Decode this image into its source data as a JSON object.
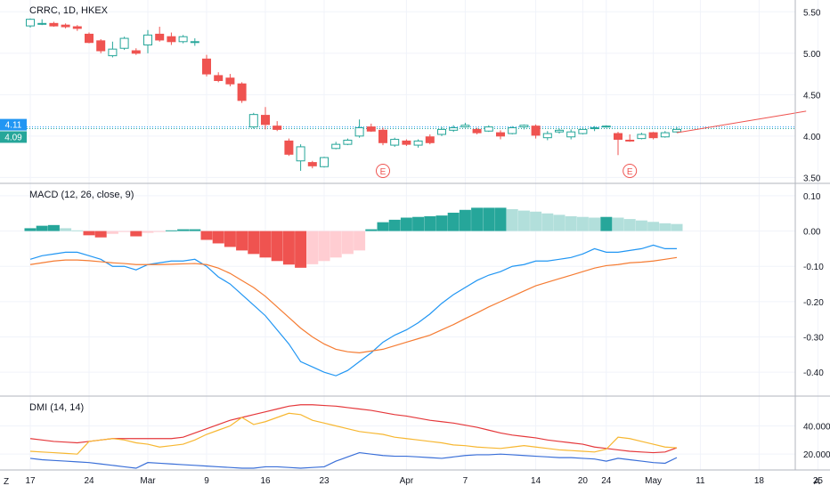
{
  "symbol_title": "CRRC, 1D, HKEX",
  "macd_label": "MACD (12, 26, close, 9)",
  "dmi_label": "DMI (14, 14)",
  "corner_left": "Z",
  "corner_right": "A",
  "colors": {
    "up": "#26a69a",
    "down": "#ef5350",
    "macd": "#2196f3",
    "signal": "#f57c33",
    "hist_up_strong": "#26a69a",
    "hist_up_weak": "#b2dfdb",
    "hist_dn_strong": "#ef5350",
    "hist_dn_weak": "#ffcdd2",
    "dmi_plus": "#3a6fd8",
    "dmi_minus": "#e5383b",
    "adx": "#f7b731",
    "trend": "#ef5350"
  },
  "chart_data": [
    {
      "type": "candlestick",
      "title": "CRRC, 1D, HKEX",
      "ylim": [
        3.45,
        5.6
      ],
      "yticks": [
        "5.50",
        "5.00",
        "4.50",
        "4.00",
        "3.50"
      ],
      "price_labels": [
        {
          "value": 4.11,
          "text": "4.11",
          "color": "#2196f3"
        },
        {
          "value": 4.09,
          "text": "4.09",
          "color": "#26a69a"
        }
      ],
      "event_markers": [
        {
          "index": 30,
          "text": "E"
        },
        {
          "index": 51,
          "text": "E"
        }
      ],
      "x_ticks": [
        {
          "index": 0,
          "text": "17"
        },
        {
          "index": 5,
          "text": "24"
        },
        {
          "index": 10,
          "text": "Mar"
        },
        {
          "index": 15,
          "text": "9"
        },
        {
          "index": 20,
          "text": "16"
        },
        {
          "index": 25,
          "text": "23"
        },
        {
          "index": 32,
          "text": "Apr"
        },
        {
          "index": 37,
          "text": "7"
        },
        {
          "index": 43,
          "text": "14"
        },
        {
          "index": 47,
          "text": "20"
        },
        {
          "index": 49,
          "text": "24"
        },
        {
          "index": 53,
          "text": "May"
        },
        {
          "index": 57,
          "text": "11"
        },
        {
          "index": 62,
          "text": "18"
        },
        {
          "index": 67,
          "text": "25"
        }
      ],
      "candles": [
        [
          5.33,
          5.41,
          5.42,
          5.31
        ],
        [
          5.35,
          5.36,
          5.41,
          5.34
        ],
        [
          5.36,
          5.33,
          5.38,
          5.32
        ],
        [
          5.34,
          5.32,
          5.36,
          5.3
        ],
        [
          5.32,
          5.3,
          5.34,
          5.27
        ],
        [
          5.23,
          5.13,
          5.25,
          5.12
        ],
        [
          5.15,
          5.03,
          5.17,
          5.0
        ],
        [
          4.97,
          5.05,
          5.14,
          4.95
        ],
        [
          5.06,
          5.18,
          5.2,
          5.04
        ],
        [
          5.03,
          5.0,
          5.06,
          4.98
        ],
        [
          5.1,
          5.22,
          5.28,
          5.0
        ],
        [
          5.23,
          5.16,
          5.32,
          5.14
        ],
        [
          5.2,
          5.14,
          5.25,
          5.1
        ],
        [
          5.14,
          5.2,
          5.22,
          5.12
        ],
        [
          5.13,
          5.14,
          5.18,
          5.09
        ],
        [
          4.93,
          4.75,
          4.98,
          4.72
        ],
        [
          4.73,
          4.67,
          4.77,
          4.65
        ],
        [
          4.7,
          4.63,
          4.75,
          4.6
        ],
        [
          4.63,
          4.43,
          4.65,
          4.4
        ],
        [
          4.11,
          4.26,
          4.28,
          4.09
        ],
        [
          4.25,
          4.14,
          4.35,
          4.08
        ],
        [
          4.12,
          4.08,
          4.18,
          4.06
        ],
        [
          3.94,
          3.78,
          3.97,
          3.76
        ],
        [
          3.7,
          3.87,
          3.9,
          3.58
        ],
        [
          3.68,
          3.64,
          3.7,
          3.61
        ],
        [
          3.63,
          3.74,
          3.75,
          3.62
        ],
        [
          3.85,
          3.9,
          3.93,
          3.84
        ],
        [
          3.9,
          3.95,
          3.97,
          3.89
        ],
        [
          4.0,
          4.1,
          4.2,
          3.98
        ],
        [
          4.11,
          4.06,
          4.15,
          4.05
        ],
        [
          4.07,
          3.92,
          4.1,
          3.89
        ],
        [
          3.89,
          3.96,
          3.98,
          3.87
        ],
        [
          3.94,
          3.9,
          3.96,
          3.88
        ],
        [
          3.89,
          3.94,
          3.96,
          3.86
        ],
        [
          3.99,
          3.92,
          4.02,
          3.9
        ],
        [
          4.02,
          4.08,
          4.11,
          4.0
        ],
        [
          4.07,
          4.1,
          4.13,
          4.05
        ],
        [
          4.11,
          4.13,
          4.16,
          4.1
        ],
        [
          4.08,
          4.04,
          4.1,
          4.02
        ],
        [
          4.06,
          4.11,
          4.13,
          4.05
        ],
        [
          4.04,
          4.0,
          4.07,
          3.96
        ],
        [
          4.03,
          4.1,
          4.12,
          4.02
        ],
        [
          4.11,
          4.13,
          4.14,
          4.08
        ],
        [
          4.12,
          4.01,
          4.14,
          3.97
        ],
        [
          3.98,
          4.03,
          4.06,
          3.95
        ],
        [
          4.05,
          4.07,
          4.09,
          4.03
        ],
        [
          3.99,
          4.05,
          4.08,
          3.96
        ],
        [
          4.03,
          4.08,
          4.1,
          4.02
        ],
        [
          4.09,
          4.1,
          4.12,
          4.06
        ],
        [
          4.11,
          4.12,
          4.13,
          4.1
        ],
        [
          4.03,
          3.96,
          4.05,
          3.77
        ],
        [
          3.95,
          3.94,
          4.02,
          3.93
        ],
        [
          3.97,
          4.02,
          4.04,
          3.96
        ],
        [
          4.04,
          3.98,
          4.05,
          3.96
        ],
        [
          3.99,
          4.04,
          4.06,
          3.98
        ],
        [
          4.05,
          4.08,
          4.11,
          4.04
        ]
      ],
      "trendline": [
        {
          "index": 55,
          "value": 4.04
        },
        {
          "index": 66,
          "value": 4.3
        }
      ]
    },
    {
      "type": "macd",
      "title": "MACD (12, 26, close, 9)",
      "ylim": [
        -0.45,
        0.12
      ],
      "yticks": [
        "0.10",
        "0.00",
        "-0.10",
        "-0.20",
        "-0.30",
        "-0.40"
      ],
      "histogram": [
        0.008,
        0.015,
        0.017,
        0.008,
        0.002,
        -0.012,
        -0.018,
        -0.008,
        -0.002,
        -0.015,
        -0.005,
        -0.002,
        0.002,
        0.005,
        0.005,
        -0.025,
        -0.035,
        -0.045,
        -0.055,
        -0.065,
        -0.075,
        -0.085,
        -0.095,
        -0.104,
        -0.094,
        -0.085,
        -0.075,
        -0.065,
        -0.055,
        0.005,
        0.025,
        0.032,
        0.038,
        0.04,
        0.042,
        0.044,
        0.052,
        0.06,
        0.066,
        0.066,
        0.066,
        0.062,
        0.058,
        0.055,
        0.05,
        0.046,
        0.042,
        0.04,
        0.038,
        0.04,
        0.038,
        0.034,
        0.03,
        0.026,
        0.022,
        0.02
      ],
      "macd": [
        -0.08,
        -0.07,
        -0.065,
        -0.06,
        -0.06,
        -0.07,
        -0.08,
        -0.1,
        -0.1,
        -0.11,
        -0.095,
        -0.09,
        -0.085,
        -0.085,
        -0.08,
        -0.1,
        -0.13,
        -0.15,
        -0.18,
        -0.21,
        -0.24,
        -0.28,
        -0.32,
        -0.37,
        -0.385,
        -0.4,
        -0.41,
        -0.395,
        -0.37,
        -0.345,
        -0.315,
        -0.295,
        -0.28,
        -0.26,
        -0.235,
        -0.205,
        -0.18,
        -0.16,
        -0.14,
        -0.125,
        -0.115,
        -0.1,
        -0.095,
        -0.085,
        -0.085,
        -0.08,
        -0.075,
        -0.065,
        -0.05,
        -0.06,
        -0.06,
        -0.055,
        -0.05,
        -0.04,
        -0.05,
        -0.05
      ],
      "signal": [
        -0.095,
        -0.09,
        -0.085,
        -0.082,
        -0.082,
        -0.084,
        -0.087,
        -0.09,
        -0.092,
        -0.095,
        -0.095,
        -0.095,
        -0.094,
        -0.093,
        -0.092,
        -0.095,
        -0.105,
        -0.12,
        -0.14,
        -0.16,
        -0.185,
        -0.215,
        -0.245,
        -0.275,
        -0.3,
        -0.32,
        -0.335,
        -0.342,
        -0.345,
        -0.34,
        -0.335,
        -0.325,
        -0.315,
        -0.305,
        -0.295,
        -0.28,
        -0.265,
        -0.248,
        -0.232,
        -0.215,
        -0.2,
        -0.185,
        -0.17,
        -0.155,
        -0.145,
        -0.135,
        -0.125,
        -0.115,
        -0.105,
        -0.098,
        -0.095,
        -0.09,
        -0.088,
        -0.085,
        -0.08,
        -0.075
      ]
    },
    {
      "type": "dmi",
      "title": "DMI (14, 14)",
      "ylim": [
        10,
        58
      ],
      "yticks": [
        "40.0000",
        "20.0000"
      ],
      "plus_di": [
        17,
        16,
        15.5,
        15,
        14.5,
        14,
        13,
        12,
        11,
        10,
        14,
        13.5,
        13,
        12.5,
        12,
        11.5,
        11,
        10.5,
        10,
        10,
        11,
        11,
        10.5,
        10,
        10.5,
        11,
        15,
        18,
        21,
        20,
        19,
        18.5,
        18.5,
        18,
        17.5,
        17,
        18,
        19,
        19.5,
        19.5,
        20,
        19.5,
        19,
        18.5,
        18,
        17.5,
        17.5,
        17,
        16.5,
        15,
        17,
        16,
        15,
        14,
        13.5,
        17.5
      ],
      "minus_di": [
        31,
        30,
        29,
        28.5,
        28,
        29,
        30,
        31,
        31,
        31,
        31,
        31,
        31,
        32,
        35,
        38,
        41,
        44,
        46,
        48,
        50,
        52,
        54,
        55,
        55,
        54.5,
        54,
        53,
        52,
        51,
        49.5,
        48,
        47,
        45.5,
        44,
        43,
        42,
        40.5,
        39,
        37,
        35,
        33.5,
        32.5,
        31.5,
        30,
        29,
        28,
        27,
        25,
        24,
        23,
        22,
        21.5,
        21,
        21.5,
        24.5
      ],
      "adx": [
        22,
        21.5,
        21,
        20.5,
        20,
        29,
        30,
        31,
        30,
        28,
        27,
        25,
        26,
        27,
        30,
        34,
        37,
        40,
        46,
        41,
        43,
        46,
        49,
        48,
        44,
        42,
        40,
        38,
        36,
        35,
        34,
        32,
        31,
        30,
        29,
        28,
        26.5,
        26,
        25,
        24.5,
        24,
        25,
        26,
        25,
        24,
        23,
        22.5,
        22,
        21.5,
        23.5,
        32,
        31,
        29,
        27,
        25,
        24.5
      ]
    }
  ]
}
